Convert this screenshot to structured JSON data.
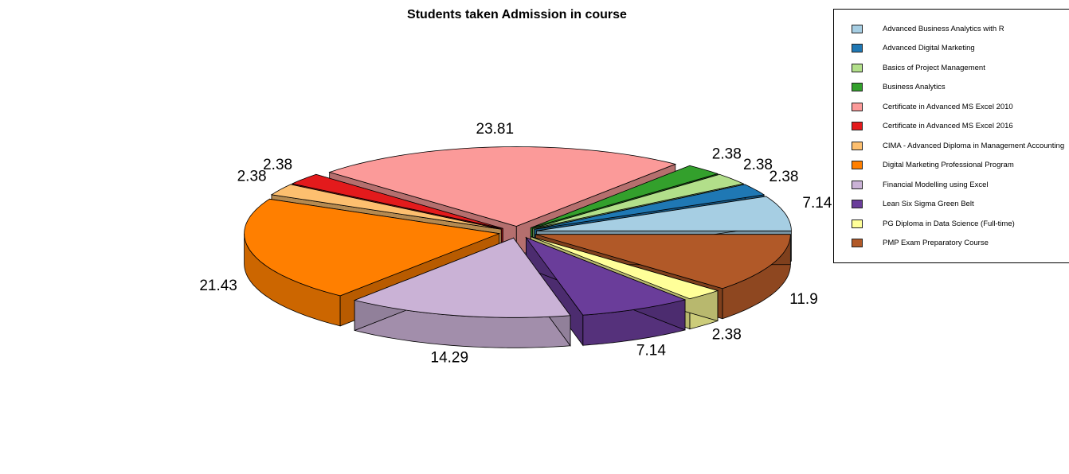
{
  "chart_data": {
    "type": "pie",
    "title": "Students taken Admission in course",
    "categories": [
      "Advanced Business Analytics with R",
      "Advanced Digital Marketing",
      "Basics of Project Management",
      "Business Analytics",
      "Certificate in Advanced MS Excel 2010",
      "Certificate in Advanced MS Excel 2016",
      "CIMA - Advanced Diploma in Management Accounting",
      "Digital Marketing Professional Program",
      "Financial Modelling using Excel",
      "Lean Six Sigma Green Belt",
      "PG Diploma in Data Science (Full-time)",
      "PMP Exam Preparatory Course"
    ],
    "values": [
      7.14,
      2.38,
      2.38,
      2.38,
      23.81,
      2.38,
      2.38,
      21.43,
      14.29,
      7.14,
      2.38,
      11.9
    ],
    "value_labels": [
      "7.14",
      "2.38",
      "2.38",
      "2.38",
      "23.81",
      "2.38",
      "2.38",
      "21.43",
      "14.29",
      "7.14",
      "2.38",
      "11.9"
    ],
    "colors": [
      "#a6cee3",
      "#1f78b4",
      "#b2df8a",
      "#33a02c",
      "#fb9a99",
      "#e31a1c",
      "#fdbf6f",
      "#ff7f00",
      "#cab2d6",
      "#6a3d9a",
      "#ffff99",
      "#b15928"
    ],
    "style": "3d-exploded",
    "legend_position": "top-right"
  }
}
